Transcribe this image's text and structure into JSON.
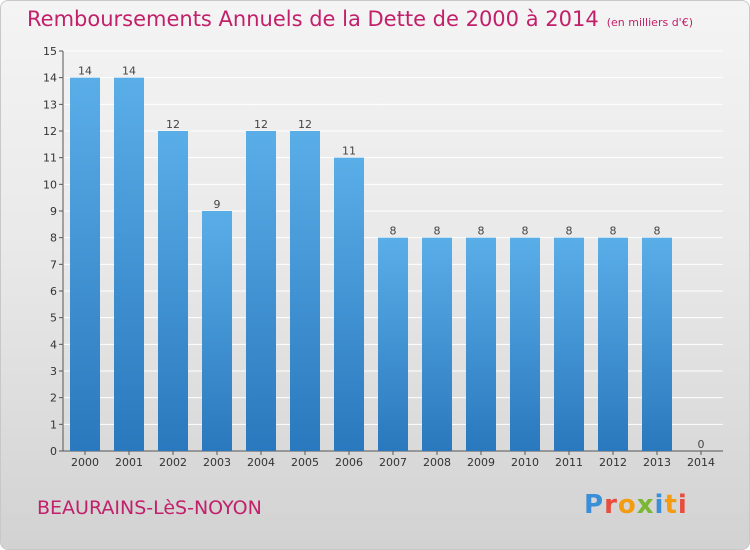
{
  "title": "Remboursements Annuels de la Dette de 2000 à 2014",
  "subtitle": "(en milliers d'€)",
  "commune": "BEAURAINS-LèS-NOYON",
  "logo": "Proxiti",
  "colors": {
    "title": "#c2206a",
    "bar_top": "#5aaee8",
    "bar_bottom": "#2a78bd"
  },
  "chart_data": {
    "type": "bar",
    "title": "Remboursements Annuels de la Dette de 2000 à 2014",
    "subtitle": "(en milliers d'€)",
    "xlabel": "",
    "ylabel": "",
    "categories": [
      "2000",
      "2001",
      "2002",
      "2003",
      "2004",
      "2005",
      "2006",
      "2007",
      "2008",
      "2009",
      "2010",
      "2011",
      "2012",
      "2013",
      "2014"
    ],
    "values": [
      14,
      14,
      12,
      9,
      12,
      12,
      11,
      8,
      8,
      8,
      8,
      8,
      8,
      8,
      0
    ],
    "ylim": [
      0,
      15
    ],
    "yticks": [
      0,
      1,
      2,
      3,
      4,
      5,
      6,
      7,
      8,
      9,
      10,
      11,
      12,
      13,
      14,
      15
    ],
    "grid": true
  }
}
